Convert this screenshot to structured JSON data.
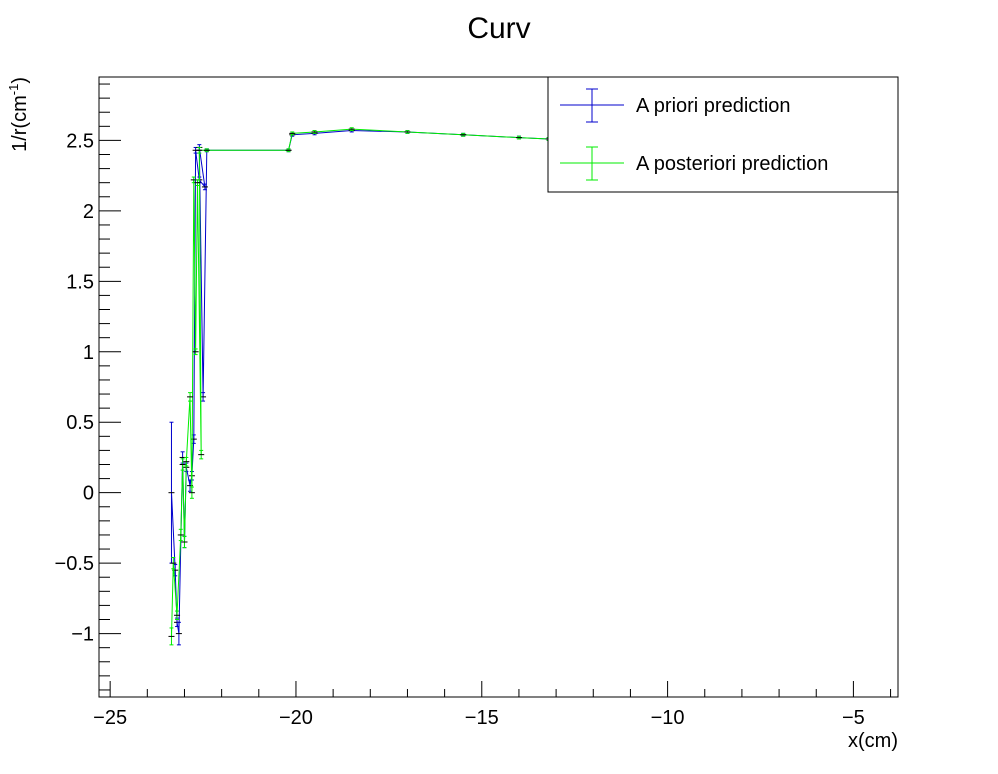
{
  "chart_data": {
    "type": "line",
    "title": "Curv",
    "xlabel": "x(cm)",
    "ylabel_main": "1/r(cm",
    "ylabel_sup": "-1",
    "ylabel_close": ")",
    "xlim": [
      -25.3,
      -3.8
    ],
    "ylim": [
      -1.45,
      2.95
    ],
    "x_ticks": [
      {
        "value": -25,
        "label": "−25"
      },
      {
        "value": -20,
        "label": "−20"
      },
      {
        "value": -15,
        "label": "−15"
      },
      {
        "value": -10,
        "label": "−10"
      },
      {
        "value": -5,
        "label": "−5"
      }
    ],
    "y_ticks": [
      {
        "value": -1,
        "label": "−1"
      },
      {
        "value": -0.5,
        "label": "−0.5"
      },
      {
        "value": 0,
        "label": "0"
      },
      {
        "value": 0.5,
        "label": "0.5"
      },
      {
        "value": 1,
        "label": "1"
      },
      {
        "value": 1.5,
        "label": "1.5"
      },
      {
        "value": 2,
        "label": "2"
      },
      {
        "value": 2.5,
        "label": "2.5"
      }
    ],
    "legend_position": "top-right",
    "series": [
      {
        "name": "A priori prediction",
        "color": "#0000cc",
        "points": [
          {
            "x": -23.35,
            "y": 0.0,
            "err": 0.5
          },
          {
            "x": -23.25,
            "y": -0.55,
            "err": 0.04
          },
          {
            "x": -23.2,
            "y": -0.92,
            "err": 0.03
          },
          {
            "x": -23.15,
            "y": -1.0,
            "err": 0.08
          },
          {
            "x": -23.05,
            "y": 0.25,
            "err": 0.04
          },
          {
            "x": -23.0,
            "y": -0.35,
            "err": 0.04
          },
          {
            "x": -22.95,
            "y": 0.18,
            "err": 0.03
          },
          {
            "x": -22.85,
            "y": 0.05,
            "err": 0.04
          },
          {
            "x": -22.8,
            "y": 0.12,
            "err": 0.03
          },
          {
            "x": -22.75,
            "y": 0.38,
            "err": 0.03
          },
          {
            "x": -22.7,
            "y": 2.43,
            "err": 0.02
          },
          {
            "x": -22.6,
            "y": 2.22,
            "err": 0.02
          },
          {
            "x": -22.45,
            "y": 2.17,
            "err": 0.02
          },
          {
            "x": -22.6,
            "y": 2.45,
            "err": 0.02
          },
          {
            "x": -22.5,
            "y": 0.68,
            "err": 0.03
          },
          {
            "x": -22.4,
            "y": 2.43,
            "err": 0.01
          },
          {
            "x": -20.2,
            "y": 2.43,
            "err": 0.01
          },
          {
            "x": -20.1,
            "y": 2.54,
            "err": 0.01
          },
          {
            "x": -19.5,
            "y": 2.55,
            "err": 0.01
          },
          {
            "x": -18.5,
            "y": 2.57,
            "err": 0.01
          },
          {
            "x": -17.0,
            "y": 2.56,
            "err": 0.01
          },
          {
            "x": -15.5,
            "y": 2.54,
            "err": 0.01
          },
          {
            "x": -14.0,
            "y": 2.52,
            "err": 0.01
          },
          {
            "x": -13.2,
            "y": 2.51,
            "err": 0.01
          }
        ]
      },
      {
        "name": "A posteriori prediction",
        "color": "#00ee00",
        "points": [
          {
            "x": -23.35,
            "y": -1.02,
            "err": 0.06
          },
          {
            "x": -23.3,
            "y": -0.5,
            "err": 0.04
          },
          {
            "x": -23.2,
            "y": -0.87,
            "err": 0.03
          },
          {
            "x": -23.1,
            "y": -0.3,
            "err": 0.04
          },
          {
            "x": -23.05,
            "y": 0.2,
            "err": 0.04
          },
          {
            "x": -23.0,
            "y": -0.35,
            "err": 0.04
          },
          {
            "x": -22.95,
            "y": 0.22,
            "err": 0.03
          },
          {
            "x": -22.85,
            "y": 0.68,
            "err": 0.03
          },
          {
            "x": -22.8,
            "y": 0.0,
            "err": 0.04
          },
          {
            "x": -22.75,
            "y": 2.22,
            "err": 0.02
          },
          {
            "x": -22.7,
            "y": 1.0,
            "err": 0.02
          },
          {
            "x": -22.65,
            "y": 2.2,
            "err": 0.02
          },
          {
            "x": -22.55,
            "y": 0.27,
            "err": 0.03
          },
          {
            "x": -22.6,
            "y": 2.43,
            "err": 0.02
          },
          {
            "x": -22.4,
            "y": 2.43,
            "err": 0.01
          },
          {
            "x": -20.2,
            "y": 2.43,
            "err": 0.01
          },
          {
            "x": -20.1,
            "y": 2.55,
            "err": 0.01
          },
          {
            "x": -19.5,
            "y": 2.56,
            "err": 0.01
          },
          {
            "x": -18.5,
            "y": 2.58,
            "err": 0.01
          },
          {
            "x": -17.0,
            "y": 2.56,
            "err": 0.01
          },
          {
            "x": -15.5,
            "y": 2.54,
            "err": 0.01
          },
          {
            "x": -14.0,
            "y": 2.52,
            "err": 0.01
          },
          {
            "x": -13.2,
            "y": 2.51,
            "err": 0.01
          }
        ]
      }
    ]
  }
}
